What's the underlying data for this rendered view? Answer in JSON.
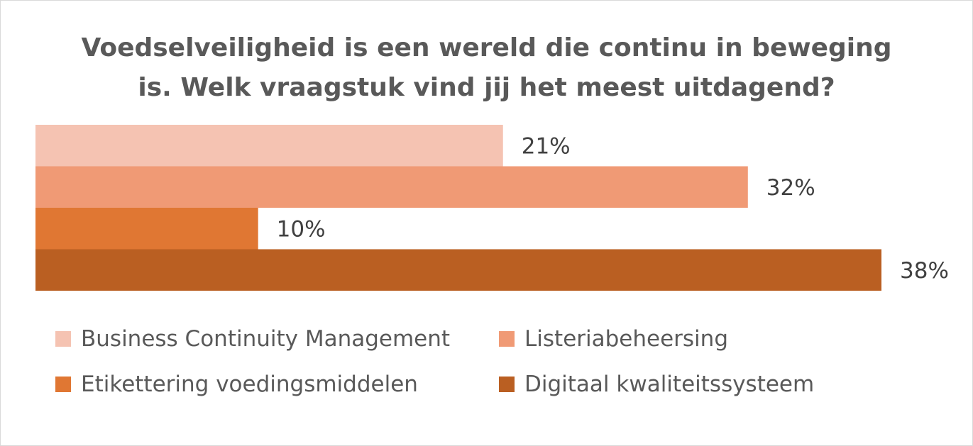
{
  "chart_data": {
    "type": "bar",
    "orientation": "horizontal",
    "title_lines": [
      "Voedselveiligheid is een wereld die continu in beweging",
      "is. Welk vraagstuk vind jij het meest uitdagend?"
    ],
    "series": [
      {
        "name": "Business Continuity Management",
        "value": 21,
        "label": "21%",
        "color": "#F5C3B2"
      },
      {
        "name": "Listeriabeheersing",
        "value": 32,
        "label": "32%",
        "color": "#F09A75"
      },
      {
        "name": "Etikettering voedingsmiddelen",
        "value": 10,
        "label": "10%",
        "color": "#E07733"
      },
      {
        "name": "Digitaal kwaliteitssysteem",
        "value": 38,
        "label": "38%",
        "color": "#BA5F22"
      }
    ],
    "xlim": [
      0,
      38
    ],
    "grid": false,
    "legend_position": "bottom"
  }
}
